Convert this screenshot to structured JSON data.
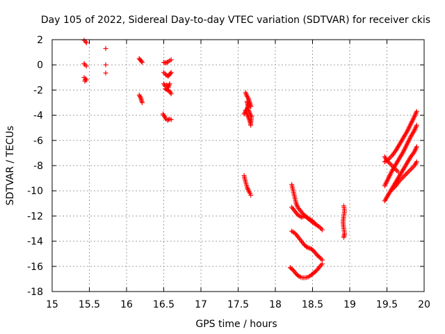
{
  "chart_data": {
    "type": "scatter",
    "title": "Day 105 of 2022, Sidereal Day-to-day VTEC variation (SDTVAR) for receiver ckis",
    "xlabel": "GPS time / hours",
    "ylabel": "SDTVAR / TECUs",
    "xlim": [
      15,
      20
    ],
    "ylim": [
      -18,
      2
    ],
    "xticks": [
      15,
      15.5,
      16,
      16.5,
      17,
      17.5,
      18,
      18.5,
      19,
      19.5,
      20
    ],
    "xtick_labels": [
      "15",
      "15.5",
      "16",
      "16.5",
      "17",
      "17.5",
      "18",
      "18.5",
      "19",
      "19.5",
      "20"
    ],
    "yticks": [
      2,
      0,
      -2,
      -4,
      -6,
      -8,
      -10,
      -12,
      -14,
      -16,
      -18
    ],
    "ytick_labels": [
      "2",
      "0",
      "-2",
      "-4",
      "-6",
      "-8",
      "-10",
      "-12",
      "-14",
      "-16",
      "-18"
    ],
    "grid": true,
    "marker": "+",
    "color": "#ff0000",
    "series": [
      {
        "name": "SDTVAR",
        "segments": [
          [
            [
              15.43,
              1.95
            ],
            [
              15.45,
              1.85
            ],
            [
              15.46,
              1.75
            ]
          ],
          [
            [
              15.43,
              0.1
            ],
            [
              15.44,
              0.0
            ],
            [
              15.46,
              -0.1
            ]
          ],
          [
            [
              15.43,
              -1.0
            ],
            [
              15.45,
              -1.1
            ],
            [
              15.44,
              -1.3
            ],
            [
              15.46,
              -1.2
            ]
          ],
          [
            [
              15.72,
              1.3
            ]
          ],
          [
            [
              15.72,
              0.0
            ]
          ],
          [
            [
              15.72,
              -0.65
            ]
          ],
          [
            [
              16.17,
              0.5
            ],
            [
              16.19,
              0.35
            ],
            [
              16.21,
              0.2
            ]
          ],
          [
            [
              16.17,
              -2.4
            ],
            [
              16.19,
              -2.6
            ],
            [
              16.2,
              -2.8
            ],
            [
              16.21,
              -3.0
            ]
          ],
          [
            [
              16.5,
              0.2
            ],
            [
              16.53,
              0.15
            ],
            [
              16.56,
              0.25
            ],
            [
              16.58,
              0.35
            ],
            [
              16.6,
              0.4
            ]
          ],
          [
            [
              16.5,
              -0.6
            ],
            [
              16.53,
              -0.8
            ],
            [
              16.56,
              -0.9
            ],
            [
              16.58,
              -0.75
            ],
            [
              16.6,
              -0.6
            ]
          ],
          [
            [
              16.5,
              -1.5
            ],
            [
              16.52,
              -1.7
            ],
            [
              16.54,
              -1.6
            ],
            [
              16.56,
              -1.8
            ],
            [
              16.58,
              -1.5
            ]
          ],
          [
            [
              16.52,
              -1.9
            ],
            [
              16.55,
              -2.0
            ],
            [
              16.58,
              -2.1
            ],
            [
              16.6,
              -2.3
            ]
          ],
          [
            [
              16.49,
              -3.9
            ],
            [
              16.51,
              -4.1
            ],
            [
              16.53,
              -4.3
            ],
            [
              16.55,
              -4.4
            ],
            [
              16.58,
              -4.3
            ],
            [
              16.6,
              -4.35
            ]
          ],
          [
            [
              17.6,
              -2.2
            ],
            [
              17.62,
              -2.5
            ],
            [
              17.64,
              -2.7
            ],
            [
              17.65,
              -2.9
            ],
            [
              17.66,
              -3.1
            ],
            [
              17.67,
              -3.3
            ]
          ],
          [
            [
              17.6,
              -3.6
            ],
            [
              17.62,
              -3.9
            ],
            [
              17.64,
              -4.2
            ],
            [
              17.66,
              -4.5
            ],
            [
              17.67,
              -4.8
            ]
          ],
          [
            [
              17.58,
              -3.9
            ],
            [
              17.6,
              -3.7
            ],
            [
              17.62,
              -3.5
            ],
            [
              17.65,
              -3.0
            ],
            [
              17.67,
              -3.3
            ]
          ],
          [
            [
              17.62,
              -2.9
            ],
            [
              17.63,
              -3.2
            ],
            [
              17.64,
              -3.6
            ],
            [
              17.66,
              -3.9
            ],
            [
              17.68,
              -4.1
            ],
            [
              17.67,
              -4.6
            ]
          ],
          [
            [
              17.58,
              -8.8
            ],
            [
              17.6,
              -9.3
            ],
            [
              17.62,
              -9.7
            ],
            [
              17.64,
              -10.0
            ],
            [
              17.66,
              -10.2
            ],
            [
              17.67,
              -10.35
            ]
          ],
          [
            [
              18.22,
              -9.5
            ],
            [
              18.24,
              -10.0
            ],
            [
              18.26,
              -10.5
            ],
            [
              18.28,
              -11.0
            ],
            [
              18.3,
              -11.3
            ],
            [
              18.34,
              -11.6
            ],
            [
              18.38,
              -11.9
            ],
            [
              18.42,
              -12.1
            ],
            [
              18.46,
              -12.3
            ],
            [
              18.5,
              -12.5
            ],
            [
              18.55,
              -12.7
            ],
            [
              18.6,
              -12.9
            ],
            [
              18.63,
              -13.1
            ]
          ],
          [
            [
              18.22,
              -11.3
            ],
            [
              18.26,
              -11.6
            ],
            [
              18.3,
              -11.9
            ],
            [
              18.35,
              -12.1
            ],
            [
              18.4,
              -12.0
            ],
            [
              18.45,
              -12.2
            ],
            [
              18.5,
              -12.4
            ],
            [
              18.55,
              -12.7
            ]
          ],
          [
            [
              18.22,
              -13.2
            ],
            [
              18.27,
              -13.4
            ],
            [
              18.31,
              -13.7
            ],
            [
              18.35,
              -14.0
            ],
            [
              18.39,
              -14.3
            ],
            [
              18.43,
              -14.5
            ],
            [
              18.48,
              -14.6
            ],
            [
              18.52,
              -14.8
            ],
            [
              18.56,
              -15.1
            ],
            [
              18.6,
              -15.3
            ],
            [
              18.63,
              -15.5
            ]
          ],
          [
            [
              18.2,
              -16.1
            ],
            [
              18.24,
              -16.3
            ],
            [
              18.28,
              -16.6
            ],
            [
              18.32,
              -16.8
            ],
            [
              18.36,
              -16.9
            ],
            [
              18.4,
              -16.9
            ],
            [
              18.44,
              -16.85
            ],
            [
              18.48,
              -16.7
            ],
            [
              18.52,
              -16.5
            ],
            [
              18.56,
              -16.3
            ],
            [
              18.6,
              -16.0
            ],
            [
              18.63,
              -15.8
            ]
          ],
          [
            [
              18.92,
              -11.2
            ],
            [
              18.93,
              -11.6
            ],
            [
              18.92,
              -12.0
            ],
            [
              18.91,
              -12.5
            ],
            [
              18.92,
              -13.0
            ],
            [
              18.93,
              -13.4
            ],
            [
              18.92,
              -13.7
            ]
          ],
          [
            [
              19.47,
              -7.7
            ],
            [
              19.52,
              -7.5
            ],
            [
              19.57,
              -7.2
            ],
            [
              19.62,
              -6.8
            ],
            [
              19.67,
              -6.3
            ],
            [
              19.72,
              -5.8
            ],
            [
              19.77,
              -5.3
            ],
            [
              19.82,
              -4.7
            ],
            [
              19.87,
              -4.1
            ],
            [
              19.9,
              -3.7
            ]
          ],
          [
            [
              19.47,
              -9.6
            ],
            [
              19.52,
              -9.0
            ],
            [
              19.57,
              -8.4
            ],
            [
              19.62,
              -7.9
            ],
            [
              19.67,
              -7.4
            ],
            [
              19.72,
              -6.9
            ],
            [
              19.77,
              -6.3
            ],
            [
              19.82,
              -5.7
            ],
            [
              19.87,
              -5.2
            ],
            [
              19.9,
              -4.8
            ]
          ],
          [
            [
              19.47,
              -10.8
            ],
            [
              19.52,
              -10.3
            ],
            [
              19.57,
              -9.8
            ],
            [
              19.62,
              -9.3
            ],
            [
              19.67,
              -8.8
            ],
            [
              19.72,
              -8.3
            ],
            [
              19.77,
              -7.8
            ],
            [
              19.82,
              -7.3
            ],
            [
              19.87,
              -6.9
            ],
            [
              19.9,
              -6.5
            ]
          ],
          [
            [
              19.57,
              -9.9
            ],
            [
              19.62,
              -9.6
            ],
            [
              19.67,
              -9.2
            ],
            [
              19.72,
              -8.9
            ],
            [
              19.77,
              -8.6
            ],
            [
              19.82,
              -8.3
            ],
            [
              19.87,
              -8.0
            ],
            [
              19.9,
              -7.7
            ]
          ],
          [
            [
              19.47,
              -7.3
            ],
            [
              19.5,
              -7.6
            ],
            [
              19.55,
              -7.9
            ],
            [
              19.6,
              -8.2
            ],
            [
              19.65,
              -8.5
            ]
          ]
        ]
      }
    ]
  }
}
